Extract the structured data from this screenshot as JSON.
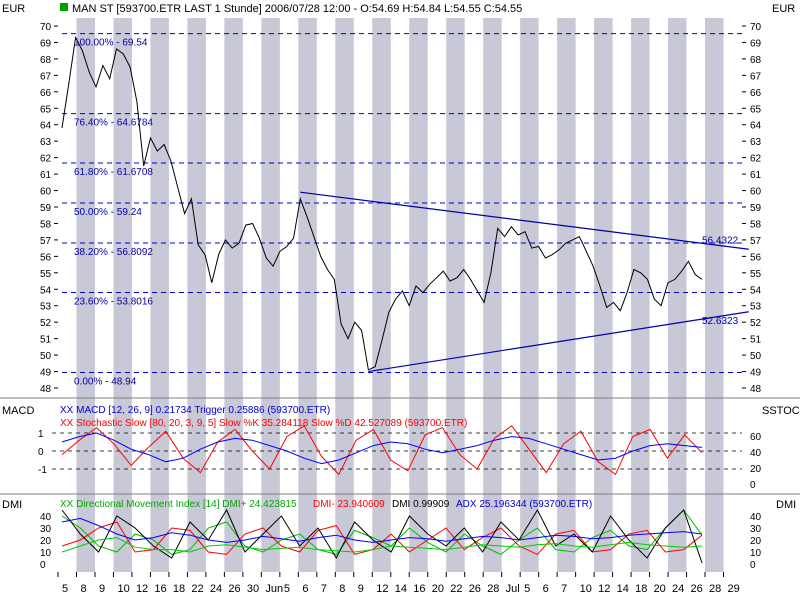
{
  "header": {
    "currency_left": "EUR",
    "currency_right": "EUR",
    "title": "MAN ST [593700.ETR LAST 1 Stunde] 2006/07/28 12:00 - O:54.69 H:54.84 L:54.55 C:54.55",
    "marker_color": "#00a000"
  },
  "colors": {
    "band": "#c8c8d6",
    "price_line": "#000000",
    "trend_line": "#0000aa",
    "fib_line": "#0000cc",
    "fib_text": "#0000aa",
    "macd_line": "#0000ff",
    "stoch_slow_k": "#ff0000",
    "dmi_plus": "#00bb00",
    "dmi_minus": "#ff0000",
    "adx": "#0000ff"
  },
  "panels": {
    "macd_label": "MACD",
    "sstoc_label": "SSTOC",
    "dmi_left_label": "DMI",
    "dmi_right_label": "DMI"
  },
  "legend": {
    "macd": "XX MACD [12, 26, 9] 0.21734 Trigger 0.25886 (593700.ETR)",
    "stoch": "XX Stochastic Slow [80, 20, 3, 9, 5] Slow %K 35.284118 Slow %D 42.527089 (593700.ETR)",
    "dmi_a": "XX Directional Movement Index [14] DMI+ 24.423815",
    "dmi_b": "DMI- 23.940609",
    "dmi_c": "DMI 0.99909",
    "dmi_d": "ADX 25.196344 (593700.ETR)"
  },
  "chart_data": [
    {
      "type": "line",
      "title": "MAN ST [593700.ETR LAST 1 Stunde] 2006/07/28 12:00 - O:54.69 H:54.84 L:54.55 C:54.55",
      "ylabel": "EUR",
      "ylim": [
        48,
        70
      ],
      "y_ticks": [
        48,
        49,
        50,
        51,
        52,
        53,
        54,
        55,
        56,
        57,
        58,
        59,
        60,
        61,
        62,
        63,
        64,
        65,
        66,
        67,
        68,
        69,
        70
      ],
      "x_tick_labels": [
        "5",
        "8",
        "9",
        "10",
        "12",
        "16",
        "18",
        "22",
        "24",
        "26",
        "30",
        "Jun",
        "5",
        "6",
        "7",
        "8",
        "9",
        "12",
        "14",
        "16",
        "20",
        "22",
        "26",
        "28",
        "Jul",
        "5",
        "6",
        "7",
        "10",
        "12",
        "14",
        "18",
        "20",
        "24",
        "26",
        "28",
        "29"
      ],
      "grid": "alternating vertical day bands",
      "series": [
        {
          "values": [
            63.8,
            66.5,
            69.3,
            68.5,
            67.2,
            66.3,
            67.6,
            66.8,
            68.6,
            68.3,
            67.5,
            65.4,
            61.5,
            63.2,
            62.4,
            62.8,
            61.8,
            60.2,
            58.6,
            59.5,
            56.7,
            56.1,
            54.4,
            56.1,
            57.0,
            56.5,
            56.8,
            57.9,
            58.0,
            57.1,
            55.9,
            55.4,
            56.3,
            56.6,
            57.1,
            59.5,
            58.4,
            57.2,
            56.0,
            55.2,
            54.6,
            51.9,
            51.0,
            52.0,
            51.5,
            49.1,
            49.3,
            50.9,
            52.6,
            53.4,
            53.9,
            53.0,
            54.2,
            53.8,
            54.3,
            54.7,
            55.1,
            54.5,
            54.7,
            55.2,
            54.6,
            53.9,
            53.2,
            55.0,
            57.7,
            57.2,
            57.8,
            57.3,
            57.5,
            56.5,
            56.6,
            55.9,
            56.1,
            56.4,
            56.8,
            57.0,
            57.2,
            56.3,
            55.4,
            54.2,
            52.9,
            53.2,
            52.7,
            53.8,
            55.2,
            55.0,
            54.6,
            53.4,
            53.0,
            54.4,
            54.6,
            55.1,
            55.7,
            54.9,
            54.6
          ]
        }
      ],
      "annotations": [
        "100.00% - 69.54",
        "76.40% - 64.6784",
        "61.80% - 61.6708",
        "50.00% - 59.24",
        "38.20% - 56.8092",
        "23.60% - 53.8016",
        "0.00% - 48.94",
        "56.4322",
        "52.6323"
      ],
      "fib_levels": [
        69.54,
        64.6784,
        61.6708,
        59.24,
        56.8092,
        53.8016,
        48.94
      ],
      "trendlines": [
        {
          "x": [
            35,
            95
          ],
          "y": [
            59.9,
            56.4322
          ]
        },
        {
          "x": [
            45,
            95
          ],
          "y": [
            49.0,
            52.6323
          ]
        }
      ]
    },
    {
      "type": "line",
      "ylim": [
        -1.6,
        1.6
      ],
      "y_ticks_left": [
        -1,
        0,
        1
      ],
      "y_ticks_right": [
        0,
        20,
        40,
        60
      ],
      "series": [
        {
          "name": "MACD [12, 26, 9]",
          "values": [
            0.5,
            0.8,
            1.0,
            0.6,
            0.1,
            -0.2,
            -0.6,
            -0.4,
            0.1,
            0.5,
            0.7,
            0.6,
            0.3,
            0.0,
            -0.4,
            -0.7,
            -0.5,
            -0.1,
            0.3,
            0.5,
            0.4,
            0.1,
            -0.1,
            0.1,
            0.3,
            0.6,
            0.8,
            0.7,
            0.4,
            0.1,
            -0.2,
            -0.5,
            -0.4,
            0.0,
            0.3,
            0.4,
            0.3,
            0.2
          ]
        },
        {
          "name": "Stochastic Slow [80, 20, 3, 9, 5]",
          "values": [
            -0.2,
            0.6,
            1.3,
            0.4,
            -0.8,
            0.2,
            1.1,
            -0.4,
            -1.2,
            0.5,
            1.2,
            0.0,
            -1.0,
            0.8,
            1.4,
            -0.3,
            -1.3,
            0.6,
            1.2,
            -0.5,
            -1.1,
            0.9,
            1.3,
            -0.2,
            -1.0,
            0.7,
            1.4,
            0.1,
            -1.2,
            0.4,
            1.1,
            -0.6,
            -1.3,
            0.8,
            1.2,
            -0.4,
            0.9,
            -0.1
          ]
        }
      ]
    },
    {
      "type": "line",
      "ylim": [
        0,
        50
      ],
      "y_ticks": [
        0,
        10,
        20,
        30,
        40
      ],
      "series": [
        {
          "name": "DMI+",
          "values": [
            40,
            30,
            15,
            10,
            25,
            20,
            8,
            12,
            30,
            35,
            15,
            10,
            20,
            25,
            12,
            8,
            28,
            22,
            15,
            30,
            18,
            10,
            25,
            15,
            8,
            20,
            30,
            12,
            10,
            22,
            28,
            15,
            12,
            30,
            45,
            24
          ]
        },
        {
          "name": "DMI-",
          "values": [
            15,
            20,
            30,
            35,
            10,
            12,
            30,
            28,
            10,
            8,
            25,
            30,
            15,
            10,
            28,
            32,
            8,
            12,
            25,
            10,
            20,
            30,
            12,
            22,
            30,
            15,
            8,
            25,
            28,
            10,
            12,
            25,
            28,
            10,
            12,
            24
          ]
        },
        {
          "name": "DMI",
          "values": [
            45,
            25,
            10,
            40,
            30,
            15,
            5,
            35,
            20,
            45,
            10,
            25,
            40,
            15,
            30,
            5,
            35,
            20,
            10,
            40,
            25,
            15,
            30,
            10,
            35,
            20,
            45,
            15,
            25,
            10,
            40,
            20,
            5,
            30,
            45,
            1
          ]
        },
        {
          "name": "ADX",
          "values": [
            35,
            38,
            32,
            25,
            20,
            22,
            26,
            24,
            20,
            18,
            20,
            23,
            21,
            19,
            22,
            24,
            20,
            18,
            20,
            22,
            21,
            19,
            21,
            23,
            22,
            20,
            22,
            24,
            23,
            21,
            22,
            24,
            25,
            26,
            27,
            25
          ]
        },
        {
          "name": "green line",
          "values": [
            10,
            15,
            20,
            22,
            14,
            12,
            12,
            10,
            15,
            16,
            14,
            12,
            13,
            14,
            12,
            11,
            10,
            12,
            15,
            14,
            13,
            12,
            14,
            16,
            15,
            14,
            16,
            17,
            15,
            14,
            16,
            18,
            16,
            15,
            14,
            15
          ]
        }
      ]
    }
  ]
}
